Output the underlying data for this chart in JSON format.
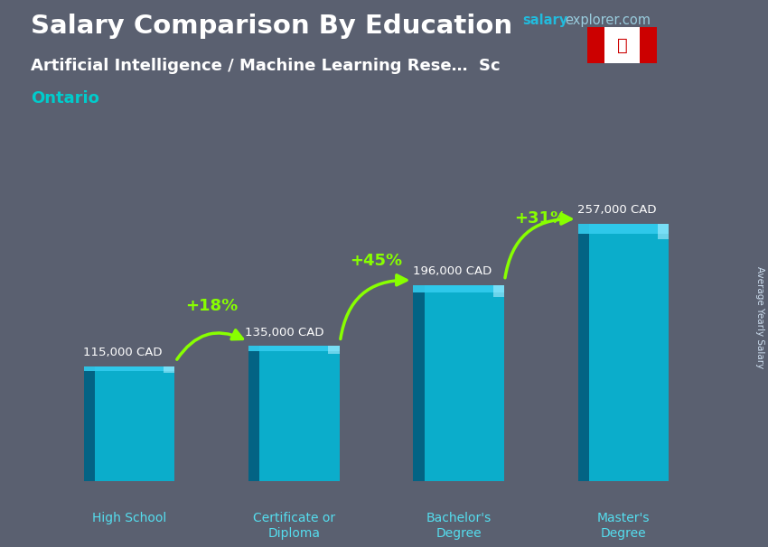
{
  "title_salary": "Salary Comparison By Education",
  "title_job": "Artificial Intelligence / Machine Learning Rese…  Sc",
  "title_location": "Ontario",
  "watermark_salary": "salary",
  "watermark_rest": "explorer.com",
  "ylabel": "Average Yearly Salary",
  "categories": [
    "High School",
    "Certificate or\nDiploma",
    "Bachelor's\nDegree",
    "Master's\nDegree"
  ],
  "values": [
    115000,
    135000,
    196000,
    257000
  ],
  "value_labels": [
    "115,000 CAD",
    "135,000 CAD",
    "196,000 CAD",
    "257,000 CAD"
  ],
  "pct_labels": [
    "+18%",
    "+45%",
    "+31%"
  ],
  "bar_color_main": "#00b8d9",
  "bar_color_light": "#33ccee",
  "bar_color_dark": "#007799",
  "bar_color_left": "#004466",
  "bg_color": "#444455",
  "title_color": "#ffffff",
  "subtitle_color": "#ffffff",
  "location_color": "#00cccc",
  "value_color": "#ffffff",
  "pct_color": "#88ff00",
  "arrow_color": "#88ff00",
  "watermark_color_bold": "#00aacc",
  "watermark_color_normal": "#aaccdd",
  "ylim_max": 300000,
  "bar_width": 0.55,
  "x_positions": [
    0,
    1,
    2,
    3
  ]
}
